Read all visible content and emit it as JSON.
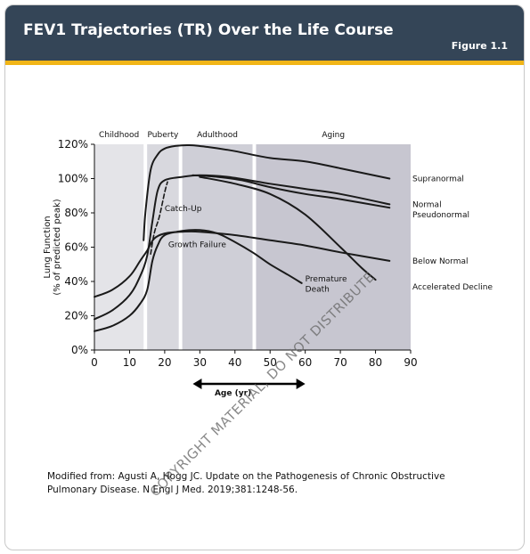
{
  "header": {
    "title": "FEV1 Trajectories (TR) Over the Life Course",
    "figure_label": "Figure 1.1"
  },
  "caption": "Modified from: Agusti A, Hogg JC. Update on the Pathogenesis of Chronic Obstructive Pulmonary Disease. N Engl J Med. 2019;381:1248-56.",
  "watermark": "COPYRIGHT MATERIAL, DO NOT DISTRIBUTE",
  "colors": {
    "header_bg": "#344557",
    "accent": "#f1b517",
    "phase_childhood": "#e4e4e8",
    "phase_puberty": "#d8d8de",
    "phase_adulthood": "#cfcfd7",
    "phase_aging": "#c7c6d0",
    "curve": "#1a1a1a"
  },
  "chart_data": {
    "type": "line",
    "title": "",
    "ylabel": "Lung Function\n(% of predicted peak)",
    "xlabel": "Age (yr)",
    "xlim": [
      0,
      90
    ],
    "ylim": [
      0,
      120
    ],
    "x_ticks": [
      "0",
      "10",
      "20",
      "30",
      "40",
      "50",
      "60",
      "70",
      "80",
      "90"
    ],
    "y_ticks": [
      "0%",
      "20%",
      "40%",
      "60%",
      "80%",
      "100%",
      "120%"
    ],
    "phases": [
      {
        "name": "Childhood",
        "start": 0,
        "end": 14
      },
      {
        "name": "Puberty",
        "start": 15,
        "end": 24
      },
      {
        "name": "Adulthood",
        "start": 25,
        "end": 45
      },
      {
        "name": "Aging",
        "start": 46,
        "end": 90
      }
    ],
    "series": [
      {
        "name": "Supranormal",
        "points": [
          [
            14,
            64
          ],
          [
            14.5,
            80
          ],
          [
            16,
            105
          ],
          [
            18,
            114
          ],
          [
            20,
            117.5
          ],
          [
            23,
            119
          ],
          [
            27,
            119.5
          ],
          [
            32,
            118.5
          ],
          [
            40,
            116
          ],
          [
            50,
            112
          ],
          [
            60,
            110
          ],
          [
            70,
            106
          ],
          [
            84,
            100
          ]
        ]
      },
      {
        "name": "Normal",
        "points": [
          [
            0,
            18
          ],
          [
            5,
            23
          ],
          [
            10,
            32
          ],
          [
            13,
            43
          ],
          [
            15,
            55
          ],
          [
            16.5,
            75
          ],
          [
            18,
            93
          ],
          [
            20,
            99
          ],
          [
            25,
            101
          ],
          [
            30,
            102
          ],
          [
            38,
            101
          ],
          [
            50,
            97
          ],
          [
            60,
            94
          ],
          [
            70,
            91
          ],
          [
            84,
            85
          ]
        ]
      },
      {
        "name": "Pseudonormal",
        "points": [
          [
            28,
            102
          ],
          [
            35,
            101
          ],
          [
            42,
            99
          ],
          [
            50,
            95
          ],
          [
            60,
            91
          ],
          [
            70,
            88
          ],
          [
            84,
            83
          ]
        ]
      },
      {
        "name": "Accelerated Decline",
        "points": [
          [
            30,
            101
          ],
          [
            40,
            97
          ],
          [
            50,
            91
          ],
          [
            60,
            79
          ],
          [
            70,
            60
          ],
          [
            76,
            48
          ],
          [
            80,
            41
          ]
        ]
      },
      {
        "name": "Below Normal",
        "points": [
          [
            0,
            31
          ],
          [
            5,
            35
          ],
          [
            10,
            43
          ],
          [
            13,
            52
          ],
          [
            15,
            58
          ],
          [
            17,
            65
          ],
          [
            20,
            68
          ],
          [
            25,
            69
          ],
          [
            30,
            69
          ],
          [
            40,
            67
          ],
          [
            50,
            64
          ],
          [
            60,
            61
          ],
          [
            70,
            57
          ],
          [
            84,
            52
          ]
        ]
      },
      {
        "name": "Premature Death",
        "points": [
          [
            0,
            11
          ],
          [
            5,
            14
          ],
          [
            10,
            20
          ],
          [
            13,
            27
          ],
          [
            15,
            35
          ],
          [
            16.5,
            52
          ],
          [
            18,
            61
          ],
          [
            20,
            67
          ],
          [
            25,
            69.5
          ],
          [
            30,
            70
          ],
          [
            35,
            68
          ],
          [
            40,
            63
          ],
          [
            45,
            57
          ],
          [
            50,
            50
          ],
          [
            55,
            44
          ],
          [
            59,
            39
          ]
        ]
      },
      {
        "name": "Catch-Up",
        "dashed": true,
        "points": [
          [
            16,
            56
          ],
          [
            17,
            68
          ],
          [
            18.5,
            78
          ],
          [
            20,
            92
          ],
          [
            20.8,
            98
          ]
        ]
      }
    ],
    "annotations": [
      {
        "text": "Catch-Up",
        "x": 20,
        "y": 81
      },
      {
        "text": "Growth Failure",
        "x": 21,
        "y": 60
      },
      {
        "text": "Premature",
        "x": 60,
        "y": 40
      },
      {
        "text": "Death",
        "x": 60,
        "y": 34
      }
    ],
    "right_labels": [
      {
        "text": "Supranormal",
        "y": 100
      },
      {
        "text": "Normal",
        "y": 85
      },
      {
        "text": "Pseudonormal",
        "y": 79
      },
      {
        "text": "Below Normal",
        "y": 52
      },
      {
        "text": "Accelerated Decline",
        "y": 37
      }
    ],
    "arrow": {
      "from": 28,
      "to": 60
    },
    "grid": false,
    "legend": "none"
  }
}
